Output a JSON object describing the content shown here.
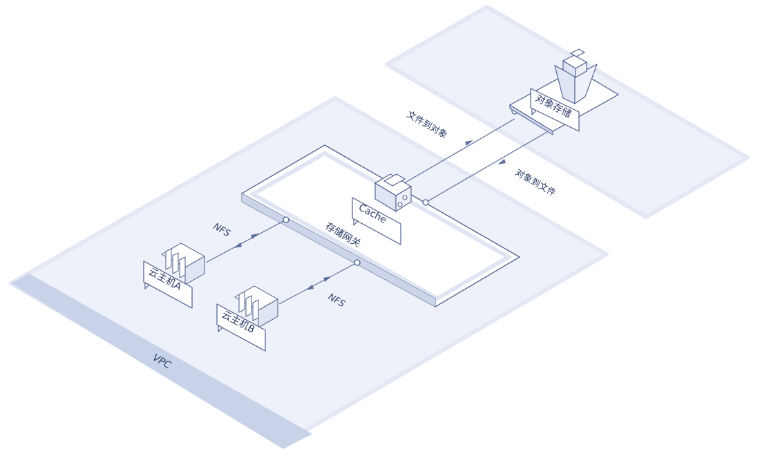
{
  "colors": {
    "zone_fill": "#eef1f9",
    "zone_edge": "#e3e8f4",
    "vpc_strip": "#c8d2e8",
    "stroke": "#4a5d8c",
    "gateway_band": "#cbd4e9",
    "arrow": "#5c6f9c"
  },
  "zones": {
    "vpc_label": "VPC"
  },
  "gateway": {
    "label": "存储网关"
  },
  "nodes": {
    "cache": "Cache",
    "object_storage": "对象存储",
    "host_a": "云主机A",
    "host_b": "云主机B"
  },
  "flows": {
    "file_to_object": "文件到对象",
    "object_to_file": "对象到文件",
    "nfs_a": "NFS",
    "nfs_b": "NFS"
  },
  "icons": {
    "cache": "cache-box-icon",
    "object_storage": "object-storage-icon",
    "host_a": "server-icon",
    "host_b": "server-icon"
  }
}
